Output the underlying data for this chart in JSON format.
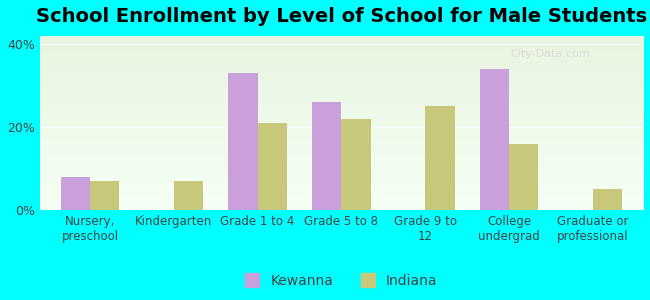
{
  "title": "School Enrollment by Level of School for Male Students",
  "categories": [
    "Nursery,\npreschool",
    "Kindergarten",
    "Grade 1 to 4",
    "Grade 5 to 8",
    "Grade 9 to\n12",
    "College\nundergrad",
    "Graduate or\nprofessional"
  ],
  "kewanna": [
    8,
    0,
    33,
    26,
    0,
    34,
    0
  ],
  "indiana": [
    7,
    7,
    21,
    22,
    25,
    16,
    5
  ],
  "kewanna_color": "#c9a0dc",
  "indiana_color": "#c8c87a",
  "ylim": [
    0,
    42
  ],
  "yticks": [
    0,
    20,
    40
  ],
  "ytick_labels": [
    "0%",
    "20%",
    "40%"
  ],
  "background_color": "#00ffff",
  "bar_width": 0.35,
  "legend_labels": [
    "Kewanna",
    "Indiana"
  ],
  "title_fontsize": 14,
  "tick_fontsize": 8.5,
  "legend_fontsize": 10
}
